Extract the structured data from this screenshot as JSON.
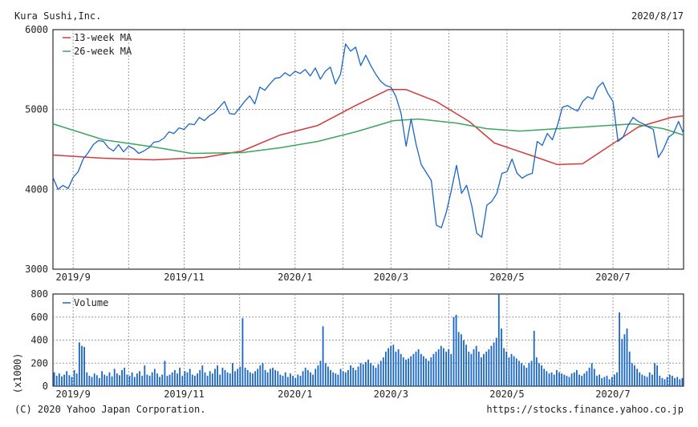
{
  "header": {
    "company": "Kura Sushi,Inc.",
    "date": "2020/8/17"
  },
  "footer": {
    "copyright": "(C) 2020 Yahoo Japan Corporation.",
    "url": "https://stocks.finance.yahoo.co.jp"
  },
  "colors": {
    "price": "#1a66c6",
    "ma13": "#d23b3b",
    "ma26": "#3aa660",
    "volume": "#1a66c6",
    "grid": "#9a9a9a"
  },
  "chart_data": [
    {
      "type": "line",
      "ylim": [
        3000,
        6000
      ],
      "yticks": [
        3000,
        4000,
        5000,
        6000
      ],
      "xlim": [
        0,
        250
      ],
      "xticks": [
        {
          "label": "2019/9",
          "x": 8
        },
        {
          "label": "2019/11",
          "x": 52
        },
        {
          "label": "2020/1",
          "x": 96
        },
        {
          "label": "2020/3",
          "x": 134
        },
        {
          "label": "2020/5",
          "x": 180
        },
        {
          "label": "2020/7",
          "x": 222
        }
      ],
      "grid": true,
      "legend": "top-left",
      "series": [
        {
          "name": "13-week MA",
          "points": [
            [
              0,
              4430
            ],
            [
              20,
              4390
            ],
            [
              40,
              4370
            ],
            [
              60,
              4400
            ],
            [
              75,
              4480
            ],
            [
              90,
              4680
            ],
            [
              105,
              4800
            ],
            [
              120,
              5050
            ],
            [
              133,
              5250
            ],
            [
              140,
              5250
            ],
            [
              152,
              5100
            ],
            [
              165,
              4850
            ],
            [
              175,
              4580
            ],
            [
              190,
              4420
            ],
            [
              200,
              4310
            ],
            [
              210,
              4320
            ],
            [
              220,
              4530
            ],
            [
              232,
              4780
            ],
            [
              245,
              4900
            ],
            [
              250,
              4920
            ]
          ]
        },
        {
          "name": "26-week MA",
          "points": [
            [
              0,
              4820
            ],
            [
              20,
              4620
            ],
            [
              40,
              4530
            ],
            [
              55,
              4450
            ],
            [
              75,
              4460
            ],
            [
              90,
              4520
            ],
            [
              105,
              4600
            ],
            [
              120,
              4720
            ],
            [
              135,
              4860
            ],
            [
              145,
              4880
            ],
            [
              160,
              4830
            ],
            [
              172,
              4760
            ],
            [
              185,
              4730
            ],
            [
              200,
              4760
            ],
            [
              215,
              4790
            ],
            [
              230,
              4820
            ],
            [
              242,
              4760
            ],
            [
              250,
              4680
            ]
          ]
        },
        {
          "name": "",
          "points": [
            [
              0,
              4150
            ],
            [
              2,
              4000
            ],
            [
              4,
              4050
            ],
            [
              6,
              4010
            ],
            [
              8,
              4150
            ],
            [
              10,
              4220
            ],
            [
              12,
              4380
            ],
            [
              14,
              4460
            ],
            [
              16,
              4560
            ],
            [
              18,
              4610
            ],
            [
              20,
              4600
            ],
            [
              22,
              4520
            ],
            [
              24,
              4480
            ],
            [
              26,
              4560
            ],
            [
              28,
              4470
            ],
            [
              30,
              4540
            ],
            [
              32,
              4510
            ],
            [
              34,
              4450
            ],
            [
              36,
              4480
            ],
            [
              38,
              4520
            ],
            [
              40,
              4590
            ],
            [
              42,
              4600
            ],
            [
              44,
              4640
            ],
            [
              46,
              4720
            ],
            [
              48,
              4700
            ],
            [
              50,
              4770
            ],
            [
              52,
              4750
            ],
            [
              54,
              4820
            ],
            [
              56,
              4810
            ],
            [
              58,
              4900
            ],
            [
              60,
              4860
            ],
            [
              62,
              4920
            ],
            [
              64,
              4960
            ],
            [
              66,
              5030
            ],
            [
              68,
              5100
            ],
            [
              70,
              4950
            ],
            [
              72,
              4940
            ],
            [
              74,
              5020
            ],
            [
              76,
              5100
            ],
            [
              78,
              5170
            ],
            [
              80,
              5070
            ],
            [
              82,
              5280
            ],
            [
              84,
              5240
            ],
            [
              86,
              5320
            ],
            [
              88,
              5390
            ],
            [
              90,
              5400
            ],
            [
              92,
              5460
            ],
            [
              94,
              5420
            ],
            [
              96,
              5480
            ],
            [
              98,
              5450
            ],
            [
              100,
              5500
            ],
            [
              102,
              5420
            ],
            [
              104,
              5520
            ],
            [
              106,
              5380
            ],
            [
              108,
              5480
            ],
            [
              110,
              5530
            ],
            [
              112,
              5320
            ],
            [
              114,
              5440
            ],
            [
              116,
              5820
            ],
            [
              118,
              5730
            ],
            [
              120,
              5780
            ],
            [
              122,
              5550
            ],
            [
              124,
              5680
            ],
            [
              126,
              5550
            ],
            [
              128,
              5440
            ],
            [
              130,
              5350
            ],
            [
              132,
              5300
            ],
            [
              134,
              5280
            ],
            [
              136,
              5160
            ],
            [
              138,
              4950
            ],
            [
              140,
              4540
            ],
            [
              142,
              4880
            ],
            [
              144,
              4560
            ],
            [
              146,
              4310
            ],
            [
              148,
              4210
            ],
            [
              150,
              4110
            ],
            [
              152,
              3550
            ],
            [
              154,
              3520
            ],
            [
              156,
              3720
            ],
            [
              158,
              4000
            ],
            [
              160,
              4300
            ],
            [
              162,
              3950
            ],
            [
              164,
              4050
            ],
            [
              166,
              3800
            ],
            [
              168,
              3450
            ],
            [
              170,
              3400
            ],
            [
              172,
              3800
            ],
            [
              174,
              3850
            ],
            [
              176,
              3950
            ],
            [
              178,
              4200
            ],
            [
              180,
              4220
            ],
            [
              182,
              4380
            ],
            [
              184,
              4200
            ],
            [
              186,
              4140
            ],
            [
              188,
              4180
            ],
            [
              190,
              4200
            ],
            [
              192,
              4600
            ],
            [
              194,
              4550
            ],
            [
              196,
              4700
            ],
            [
              198,
              4620
            ],
            [
              200,
              4800
            ],
            [
              202,
              5030
            ],
            [
              204,
              5050
            ],
            [
              206,
              5010
            ],
            [
              208,
              4980
            ],
            [
              210,
              5100
            ],
            [
              212,
              5160
            ],
            [
              214,
              5130
            ],
            [
              216,
              5280
            ],
            [
              218,
              5340
            ],
            [
              220,
              5200
            ],
            [
              222,
              5100
            ],
            [
              224,
              4600
            ],
            [
              226,
              4650
            ],
            [
              228,
              4800
            ],
            [
              230,
              4900
            ],
            [
              232,
              4850
            ],
            [
              234,
              4820
            ],
            [
              236,
              4780
            ],
            [
              238,
              4750
            ],
            [
              240,
              4400
            ],
            [
              242,
              4500
            ],
            [
              244,
              4650
            ],
            [
              246,
              4700
            ],
            [
              248,
              4850
            ],
            [
              250,
              4700
            ]
          ]
        }
      ]
    },
    {
      "type": "bar",
      "ylim": [
        0,
        800
      ],
      "yticks": [
        0,
        200,
        400,
        600,
        800
      ],
      "ylabel": "(x1000)",
      "xlim": [
        0,
        250
      ],
      "xticks": [
        {
          "label": "2019/9",
          "x": 8
        },
        {
          "label": "2019/11",
          "x": 52
        },
        {
          "label": "2020/1",
          "x": 96
        },
        {
          "label": "2020/3",
          "x": 134
        },
        {
          "label": "2020/5",
          "x": 180
        },
        {
          "label": "2020/7",
          "x": 222
        }
      ],
      "grid": true,
      "legend": "top-left",
      "series": [
        {
          "name": "Volume",
          "values": [
            120,
            90,
            110,
            85,
            100,
            130,
            95,
            80,
            140,
            110,
            380,
            350,
            340,
            120,
            90,
            80,
            110,
            95,
            70,
            130,
            100,
            90,
            120,
            85,
            150,
            110,
            95,
            140,
            160,
            100,
            90,
            120,
            80,
            110,
            130,
            90,
            180,
            100,
            90,
            120,
            150,
            110,
            80,
            100,
            220,
            90,
            100,
            120,
            140,
            110,
            160,
            90,
            130,
            120,
            150,
            100,
            90,
            110,
            140,
            180,
            120,
            90,
            130,
            110,
            150,
            180,
            100,
            160,
            140,
            120,
            110,
            200,
            130,
            150,
            170,
            590,
            160,
            140,
            120,
            110,
            130,
            150,
            180,
            200,
            140,
            120,
            150,
            160,
            140,
            130,
            100,
            90,
            120,
            80,
            110,
            90,
            70,
            100,
            90,
            130,
            160,
            140,
            120,
            100,
            150,
            180,
            220,
            520,
            200,
            170,
            140,
            120,
            110,
            100,
            150,
            130,
            120,
            140,
            180,
            160,
            140,
            170,
            200,
            190,
            210,
            230,
            200,
            180,
            160,
            190,
            220,
            250,
            300,
            330,
            350,
            360,
            300,
            320,
            280,
            250,
            230,
            240,
            260,
            280,
            300,
            320,
            280,
            260,
            240,
            220,
            250,
            280,
            300,
            320,
            350,
            330,
            300,
            320,
            280,
            600,
            620,
            470,
            450,
            400,
            360,
            300,
            280,
            320,
            350,
            300,
            250,
            280,
            300,
            320,
            350,
            380,
            420,
            800,
            500,
            330,
            300,
            250,
            280,
            260,
            240,
            220,
            200,
            180,
            160,
            200,
            220,
            480,
            250,
            200,
            180,
            150,
            130,
            110,
            120,
            100,
            140,
            120,
            110,
            100,
            90,
            80,
            110,
            120,
            140,
            100,
            90,
            110,
            130,
            160,
            200,
            150,
            90,
            100,
            70,
            80,
            90,
            60,
            80,
            100,
            120,
            640,
            410,
            450,
            500,
            300,
            200,
            180,
            150,
            120,
            100,
            90,
            80,
            120,
            100,
            200,
            180,
            90,
            70,
            60,
            80,
            100,
            90,
            70,
            80,
            60,
            70
          ]
        }
      ]
    }
  ]
}
